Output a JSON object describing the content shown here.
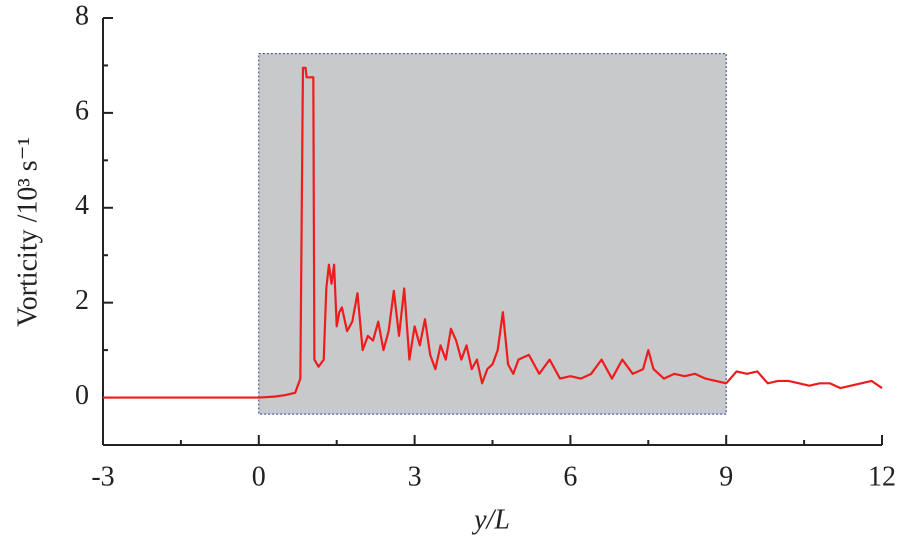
{
  "chart_data": {
    "type": "line",
    "x_label": "y/L",
    "y_label": "Vorticity /10³ s⁻¹",
    "xlim": [
      -3,
      12
    ],
    "xticks": [
      -3,
      0,
      3,
      6,
      9,
      12
    ],
    "ylim": [
      -1,
      8
    ],
    "yticks": [
      0,
      2,
      4,
      6,
      8
    ],
    "shaded_region": {
      "x": [
        0,
        9
      ],
      "y": [
        -0.35,
        7.25
      ],
      "color": "#c8c9cb"
    },
    "series": [
      {
        "color": "#ee1c1c",
        "x": [
          -3,
          0,
          0.3,
          0.5,
          0.7,
          0.8,
          0.85,
          0.9,
          0.92,
          0.96,
          1.05,
          1.07,
          1.15,
          1.25,
          1.3,
          1.35,
          1.4,
          1.45,
          1.5,
          1.55,
          1.6,
          1.7,
          1.8,
          1.9,
          2.0,
          2.1,
          2.2,
          2.3,
          2.4,
          2.5,
          2.6,
          2.7,
          2.8,
          2.9,
          3.0,
          3.1,
          3.2,
          3.3,
          3.4,
          3.5,
          3.6,
          3.7,
          3.8,
          3.9,
          4.0,
          4.1,
          4.2,
          4.3,
          4.4,
          4.5,
          4.6,
          4.7,
          4.8,
          4.9,
          5.0,
          5.2,
          5.4,
          5.6,
          5.8,
          6.0,
          6.2,
          6.4,
          6.6,
          6.8,
          7.0,
          7.2,
          7.4,
          7.5,
          7.6,
          7.8,
          8.0,
          8.2,
          8.4,
          8.6,
          8.8,
          9.0,
          9.2,
          9.4,
          9.6,
          9.8,
          10.0,
          10.2,
          10.4,
          10.6,
          10.8,
          11.0,
          11.2,
          11.4,
          11.6,
          11.8,
          12.0
        ],
        "values": [
          0,
          0,
          0.02,
          0.05,
          0.1,
          0.4,
          6.95,
          6.95,
          6.75,
          6.75,
          6.75,
          0.8,
          0.65,
          0.8,
          2.3,
          2.8,
          2.4,
          2.8,
          1.5,
          1.8,
          1.9,
          1.4,
          1.6,
          2.2,
          1.0,
          1.3,
          1.2,
          1.6,
          1.0,
          1.4,
          2.25,
          1.3,
          2.3,
          0.8,
          1.5,
          1.1,
          1.65,
          0.9,
          0.6,
          1.1,
          0.8,
          1.45,
          1.2,
          0.8,
          1.1,
          0.6,
          0.8,
          0.3,
          0.6,
          0.7,
          1.0,
          1.8,
          0.7,
          0.5,
          0.8,
          0.9,
          0.5,
          0.8,
          0.4,
          0.45,
          0.4,
          0.5,
          0.8,
          0.4,
          0.8,
          0.5,
          0.6,
          1.0,
          0.6,
          0.4,
          0.5,
          0.45,
          0.5,
          0.4,
          0.35,
          0.3,
          0.55,
          0.5,
          0.55,
          0.3,
          0.35,
          0.35,
          0.3,
          0.25,
          0.3,
          0.3,
          0.2,
          0.25,
          0.3,
          0.35,
          0.2
        ]
      }
    ]
  }
}
